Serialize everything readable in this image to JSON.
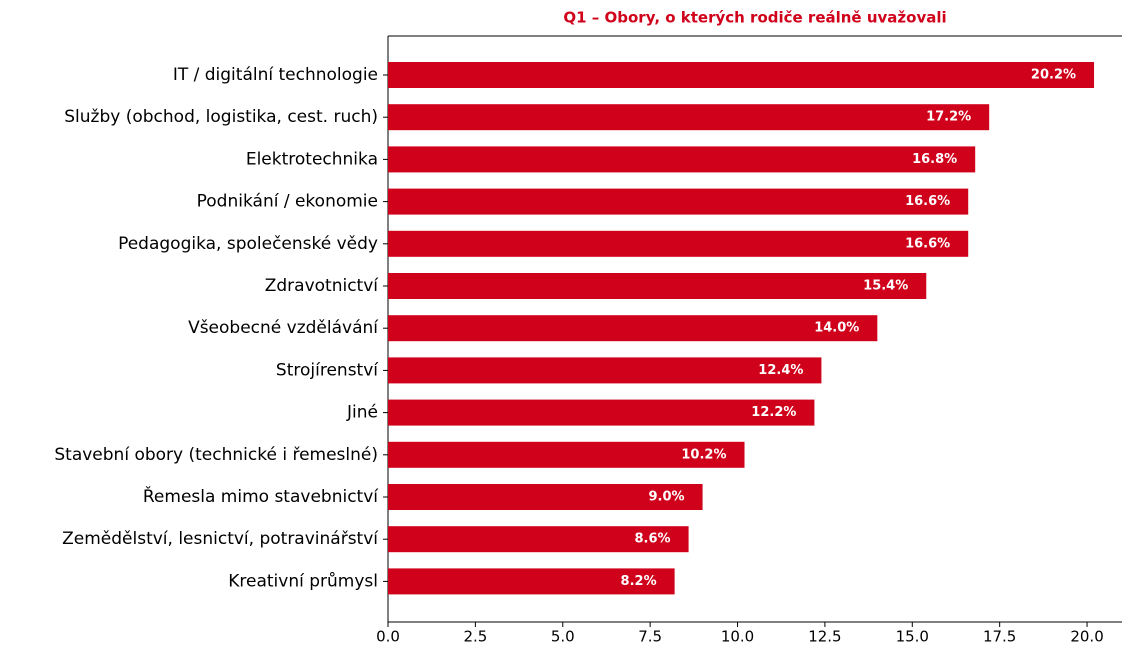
{
  "chart_data": {
    "type": "barh",
    "title": "Q1 – Obory, o kterých rodiče reálně uvažovali",
    "categories": [
      "IT / digitální technologie",
      "Služby (obchod, logistika, cest. ruch)",
      "Elektrotechnika",
      "Podnikání / ekonomie",
      "Pedagogika, společenské vědy",
      "Zdravotnictví",
      "Všeobecné vzdělávání",
      "Strojírenství",
      "Jiné",
      "Stavební obory (technické i řemeslné)",
      "Řemesla mimo stavebnictví",
      "Zemědělství, lesnictví, potravinářství",
      "Kreativní průmysl"
    ],
    "values": [
      20.2,
      17.2,
      16.8,
      16.6,
      16.6,
      15.4,
      14.0,
      12.4,
      12.2,
      10.2,
      9.0,
      8.6,
      8.2
    ],
    "value_labels": [
      "20.2%",
      "17.2%",
      "16.8%",
      "16.6%",
      "16.6%",
      "15.4%",
      "14.0%",
      "12.4%",
      "12.2%",
      "10.2%",
      "9.0%",
      "8.6%",
      "8.2%"
    ],
    "color": "#d0021b",
    "xlim": [
      0,
      21.0
    ],
    "xticks": [
      {
        "value": 0,
        "label": "0.0"
      },
      2.5,
      {
        "value": 5,
        "label": "5.0"
      },
      7.5,
      {
        "value": 10,
        "label": "10.0"
      },
      12.5,
      {
        "value": 15,
        "label": "15.0"
      },
      17.5,
      {
        "value": 20,
        "label": "20.0"
      }
    ]
  }
}
